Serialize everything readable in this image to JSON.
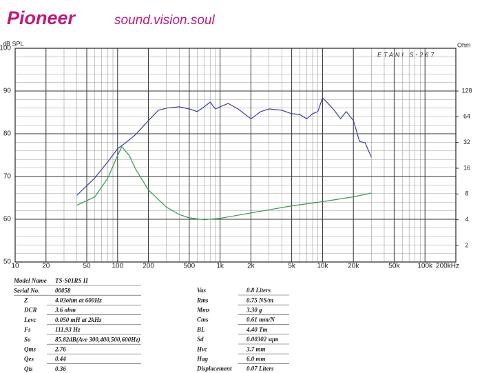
{
  "header": {
    "brand": "Pioneer",
    "tagline": "sound.vision.soul"
  },
  "chart_data": {
    "type": "line",
    "y_label": "dB SPL",
    "y2_label": "Ohm",
    "watermark": "ETANI S-267",
    "xscale": "log",
    "y2scale": "log",
    "grid": true,
    "minor_grid": true,
    "xlim": [
      10,
      200000
    ],
    "ylim": [
      50,
      100
    ],
    "y2lim": [
      1.28,
      405
    ],
    "xticks": [
      10,
      20,
      50,
      100,
      200,
      500,
      {
        "value": 1000,
        "label": "1k"
      },
      {
        "value": 2000,
        "label": "2k"
      },
      {
        "value": 5000,
        "label": "5k"
      },
      {
        "value": 10000,
        "label": "10k"
      },
      {
        "value": 20000,
        "label": "20k"
      },
      {
        "value": 50000,
        "label": "50k"
      },
      {
        "value": 100000,
        "label": "100k"
      },
      {
        "value": 200000,
        "label": "200kHz"
      }
    ],
    "yticks": [
      50,
      60,
      70,
      80,
      90,
      100
    ],
    "y2ticks": [
      2,
      4,
      8,
      16,
      32,
      64,
      128
    ],
    "series": [
      {
        "color": "#3b3bab",
        "axis": "y",
        "x": [
          40,
          60,
          80,
          100,
          120,
          150,
          200,
          250,
          300,
          400,
          500,
          600,
          700,
          800,
          900,
          1000,
          1200,
          1500,
          2000,
          2500,
          3000,
          4000,
          5000,
          6000,
          7000,
          8000,
          9000,
          10000,
          11000,
          13000,
          15000,
          17000,
          20000,
          23000,
          26000,
          30000
        ],
        "values": [
          65.6,
          69.7,
          73.4,
          76.5,
          77.9,
          79.8,
          83.1,
          85.5,
          86.0,
          86.3,
          85.8,
          85.2,
          86.3,
          87.4,
          85.8,
          86.3,
          87.1,
          85.8,
          83.5,
          85.2,
          85.8,
          85.5,
          84.7,
          84.5,
          83.5,
          84.7,
          85.2,
          88.4,
          87.4,
          85.5,
          83.5,
          85.2,
          83.1,
          78.2,
          77.9,
          74.5
        ]
      },
      {
        "color": "#2f9a4c",
        "axis": "y2",
        "x": [
          40,
          60,
          80,
          100,
          110,
          130,
          150,
          200,
          300,
          400,
          500,
          700,
          1000,
          2000,
          5000,
          10000,
          20000,
          30000
        ],
        "values": [
          5.9,
          7.4,
          12.2,
          22.5,
          28.6,
          22.5,
          15.6,
          8.9,
          5.6,
          4.6,
          4.2,
          4.0,
          4.15,
          4.8,
          5.8,
          6.5,
          7.4,
          8.2
        ]
      }
    ]
  },
  "specs": {
    "left": [
      [
        "Model Name",
        "TS-S01RS II"
      ],
      [
        "Serial  No.",
        "00058"
      ],
      [
        "Z",
        "4.03ohm at 600Hz"
      ],
      [
        "DCR",
        "3.6 ohm"
      ],
      [
        "Levc",
        "0.050  mH at 2kHz"
      ],
      [
        "Fs",
        "111.93  Hz"
      ],
      [
        "So",
        "85.82dB(Ave 300,400,500,600Hz)"
      ],
      [
        "Qms",
        "2.76"
      ],
      [
        "Qes",
        "0.44"
      ],
      [
        "Qts",
        "0.36"
      ]
    ],
    "right": [
      [
        "Vas",
        "0.8  Liters"
      ],
      [
        "Rms",
        "0.75  NS/m"
      ],
      [
        "Mms",
        "3.30  g"
      ],
      [
        "Cms",
        "0.61  mm/N"
      ],
      [
        "BL",
        "4.40  Tm"
      ],
      [
        "Sd",
        "0.00302 sqm"
      ],
      [
        "Hvc",
        "3.7  mm"
      ],
      [
        "Hag",
        "6.0  mm"
      ],
      [
        "Displacement",
        "0.07  Liters"
      ]
    ]
  }
}
